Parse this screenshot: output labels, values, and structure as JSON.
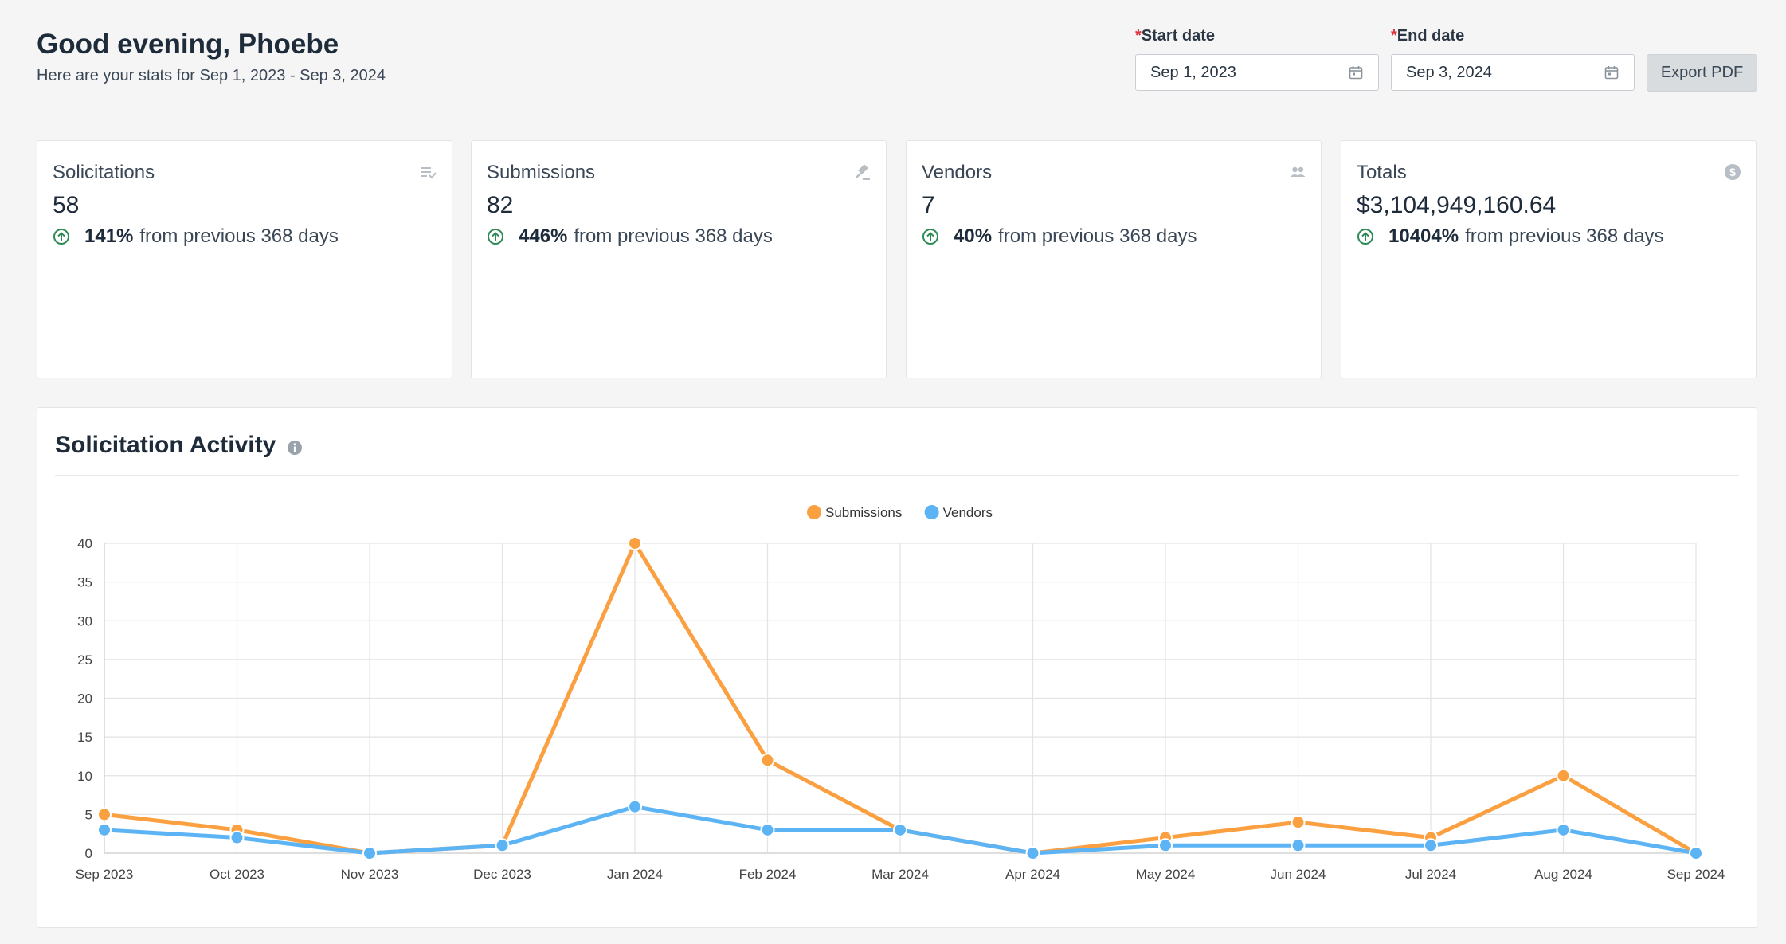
{
  "header": {
    "greeting": "Good evening, Phoebe",
    "subtitle": "Here are your stats for Sep 1, 2023 - Sep 3, 2024"
  },
  "filters": {
    "start_required": "*",
    "start_label": "Start date",
    "start_value": "Sep 1, 2023",
    "end_required": "*",
    "end_label": "End date",
    "end_value": "Sep 3, 2024",
    "export_label": "Export PDF",
    "icon": "calendar-icon"
  },
  "cards": [
    {
      "title": "Solicitations",
      "value": "58",
      "pct": "141%",
      "suffix": "from previous 368 days",
      "icon": "list-check-icon"
    },
    {
      "title": "Submissions",
      "value": "82",
      "pct": "446%",
      "suffix": "from previous 368 days",
      "icon": "gavel-icon"
    },
    {
      "title": "Vendors",
      "value": "7",
      "pct": "40%",
      "suffix": "from previous 368 days",
      "icon": "people-icon"
    },
    {
      "title": "Totals",
      "value": "$3,104,949,160.64",
      "pct": "10404%",
      "suffix": "from previous 368 days",
      "icon": "dollar-icon"
    }
  ],
  "colors": {
    "submissions": "#fba040",
    "vendors": "#5db4f5",
    "positive": "#2e8b57"
  },
  "activity": {
    "title": "Solicitation Activity",
    "info_icon": "info-icon"
  },
  "chart_data": {
    "type": "line",
    "categories": [
      "Sep 2023",
      "Oct 2023",
      "Nov 2023",
      "Dec 2023",
      "Jan 2024",
      "Feb 2024",
      "Mar 2024",
      "Apr 2024",
      "May 2024",
      "Jun 2024",
      "Jul 2024",
      "Aug 2024",
      "Sep 2024"
    ],
    "series": [
      {
        "name": "Submissions",
        "color": "#fba040",
        "values": [
          5,
          3,
          0,
          1,
          40,
          12,
          3,
          0,
          2,
          4,
          2,
          10,
          0
        ]
      },
      {
        "name": "Vendors",
        "color": "#5db4f5",
        "values": [
          3,
          2,
          0,
          1,
          6,
          3,
          3,
          0,
          1,
          1,
          1,
          3,
          0
        ]
      }
    ],
    "ylim": [
      0,
      40
    ],
    "yticks": [
      0,
      5,
      10,
      15,
      20,
      25,
      30,
      35,
      40
    ],
    "grid": true,
    "legend": "top-center"
  }
}
